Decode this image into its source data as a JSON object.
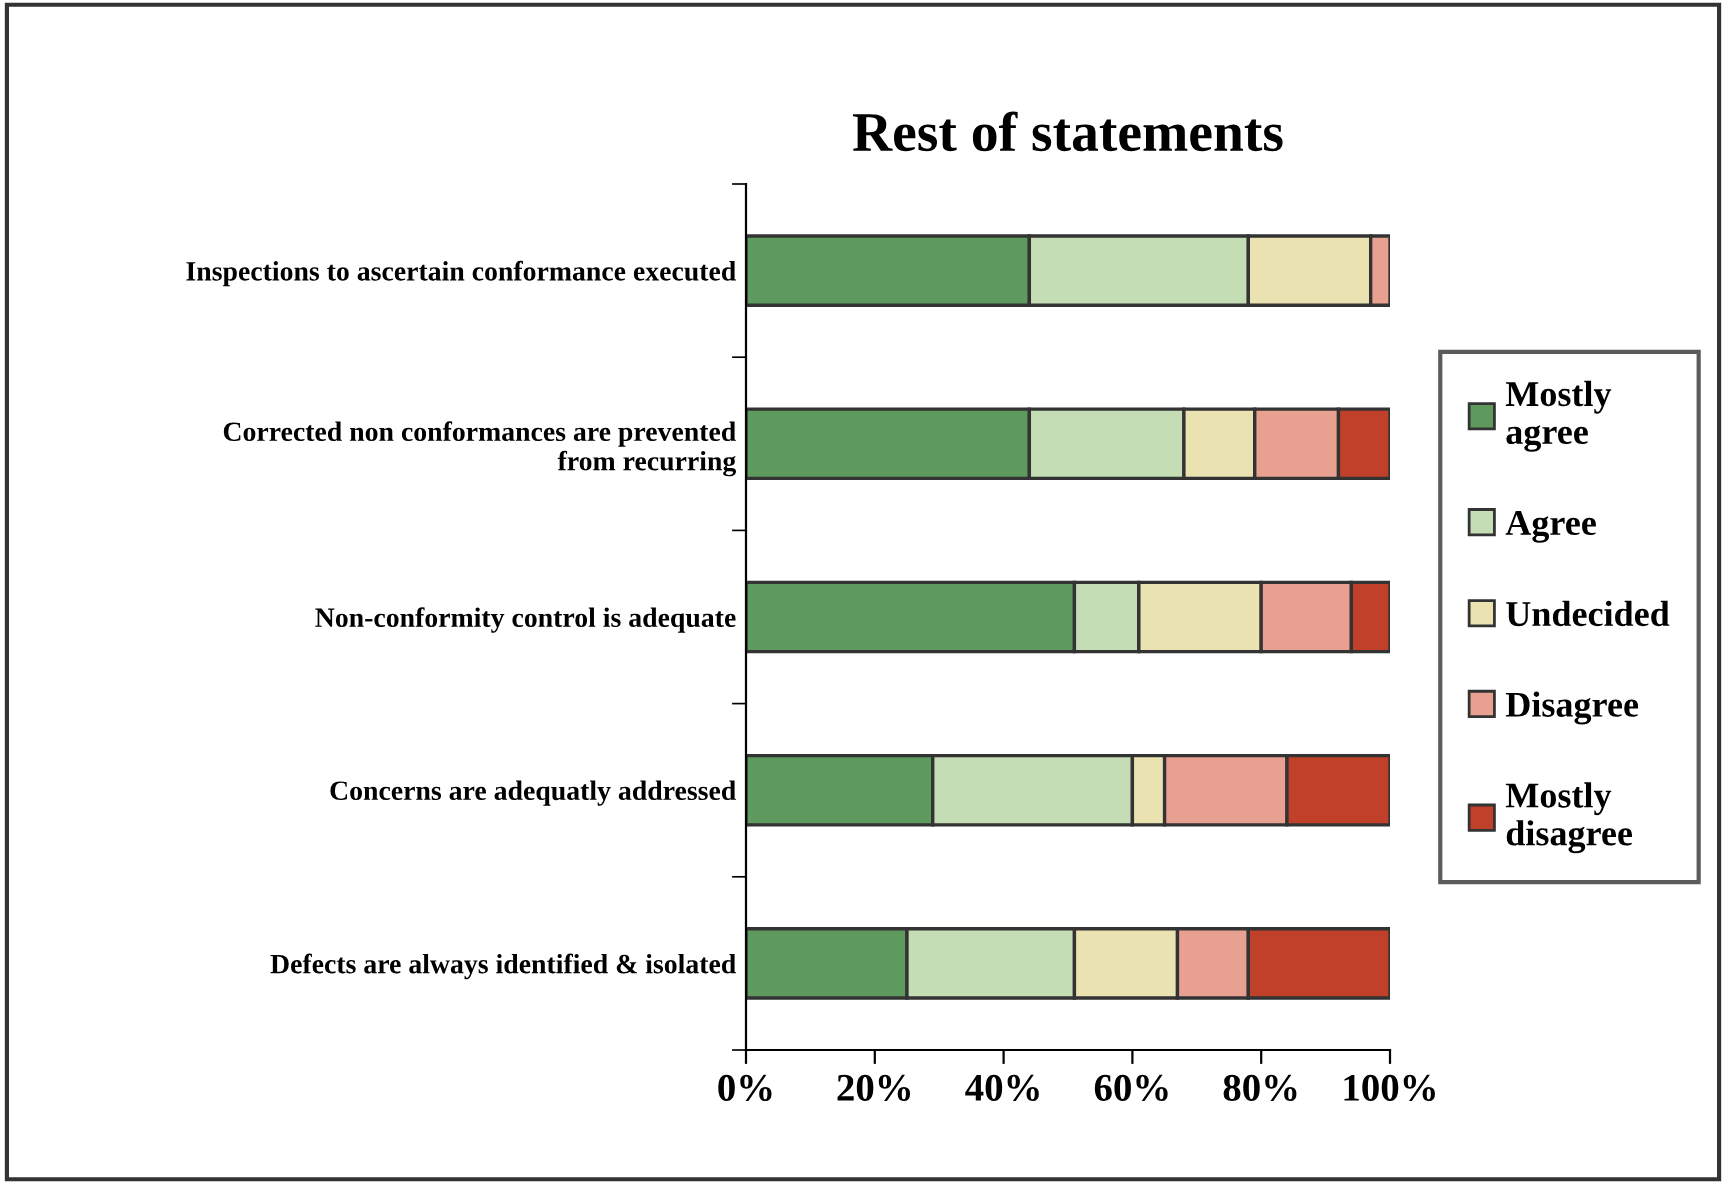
{
  "chart_data": {
    "type": "bar",
    "orientation": "horizontal",
    "stacked": true,
    "title": "Rest of statements",
    "categories": [
      "Inspections to ascertain conformance executed",
      "Corrected non conformances are prevented\nfrom recurring",
      "Non-conformity control is adequate",
      "Concerns are adequatly addressed",
      "Defects are always identified & isolated"
    ],
    "series": [
      {
        "name": "Mostly\nagree",
        "color": "#5e9a5e",
        "values": [
          44,
          44,
          51,
          29,
          25
        ]
      },
      {
        "name": "Agree",
        "color": "#c5ddb5",
        "values": [
          34,
          24,
          10,
          31,
          26
        ]
      },
      {
        "name": "Undecided",
        "color": "#ebe2b2",
        "values": [
          19,
          11,
          19,
          5,
          16
        ]
      },
      {
        "name": "Disagree",
        "color": "#e8a090",
        "values": [
          3,
          13,
          14,
          19,
          11
        ]
      },
      {
        "name": "Mostly\ndisagree",
        "color": "#c0402a",
        "values": [
          null,
          8,
          6,
          16,
          22
        ]
      }
    ],
    "xlim": [
      0,
      100
    ],
    "xticks": [
      {
        "value": 0,
        "label": "0%"
      },
      {
        "value": 20,
        "label": "20%"
      },
      {
        "value": 40,
        "label": "40%"
      },
      {
        "value": 60,
        "label": "60%"
      },
      {
        "value": 80,
        "label": "80%"
      },
      {
        "value": 100,
        "label": "100%"
      }
    ],
    "legend": "right",
    "grid": false
  }
}
